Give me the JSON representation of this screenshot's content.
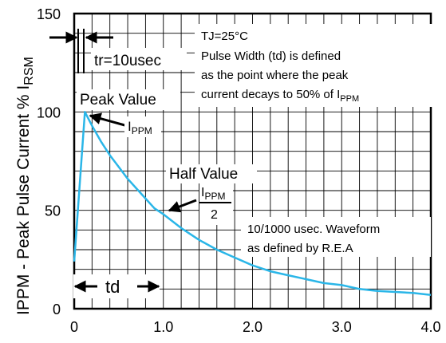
{
  "chart_data": {
    "type": "line",
    "title": "",
    "xlabel": "",
    "ylabel_main": "IPPM - Peak Pulse Current % I",
    "ylabel_sub": "RSM",
    "xlim": [
      0,
      4.0
    ],
    "ylim": [
      0,
      150
    ],
    "grid": true,
    "x_ticks": [
      {
        "value": 0,
        "label": "0"
      },
      {
        "value": 1.0,
        "label": "1.0"
      },
      {
        "value": 2.0,
        "label": "2.0"
      },
      {
        "value": 3.0,
        "label": "3.0"
      },
      {
        "value": 4.0,
        "label": "4.0"
      }
    ],
    "y_ticks": [
      {
        "value": 0,
        "label": "0"
      },
      {
        "value": 50,
        "label": "50"
      },
      {
        "value": 100,
        "label": "100"
      },
      {
        "value": 150,
        "label": "150"
      }
    ],
    "series": [
      {
        "color": "#2ab6e8",
        "x": [
          0.0,
          0.12,
          0.2,
          0.3,
          0.4,
          0.5,
          0.6,
          0.7,
          0.8,
          0.9,
          1.0,
          1.2,
          1.4,
          1.6,
          1.8,
          2.0,
          2.2,
          2.4,
          2.6,
          2.8,
          3.0,
          3.2,
          3.4,
          3.6,
          3.8,
          4.0
        ],
        "y": [
          24,
          100,
          93,
          85,
          78,
          72,
          66,
          61,
          56,
          51,
          48,
          41,
          35,
          30,
          26,
          22,
          19,
          17,
          15,
          13,
          12,
          10,
          9,
          8.5,
          8,
          7
        ]
      }
    ],
    "annotations": {
      "tr_label": "tr=10usec",
      "conditions": [
        "TJ=25°C",
        "Pulse Width (td) is defined",
        "as the point where the peak",
        "current decays to 50% of I"
      ],
      "conditions_sub": "PPM",
      "peak_value": "Peak Value",
      "peak_sym": "I",
      "peak_sym_sub": "PPM",
      "half_value": "Half Value",
      "half_num": "I",
      "half_num_sub": "PPM",
      "half_den": "2",
      "waveform": [
        "10/1000 usec. Waveform",
        "as defined by R.E.A"
      ],
      "td_label": "td"
    }
  }
}
